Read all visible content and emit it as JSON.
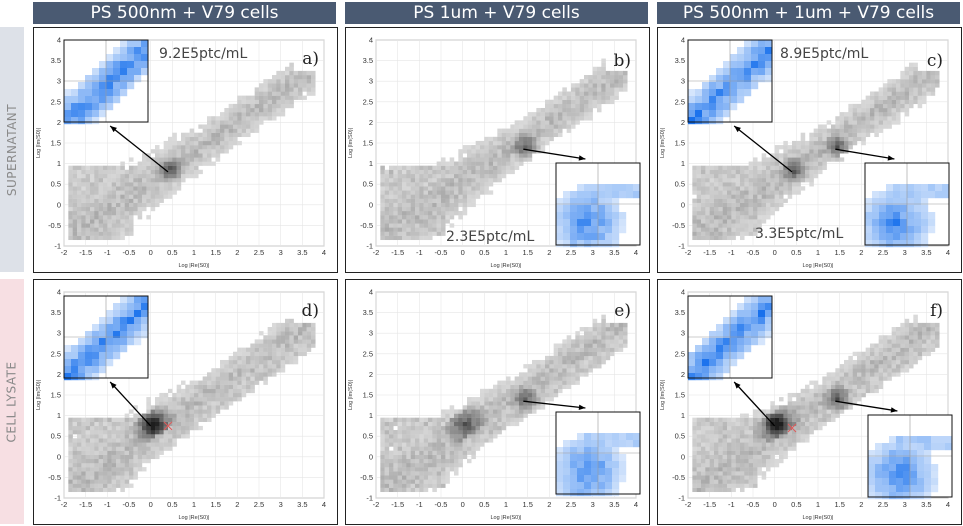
{
  "column_headers": [
    "PS 500nm + V79 cells",
    "PS 1um + V79 cells",
    "PS 500nm + 1um + V79 cells"
  ],
  "row_labels": [
    "SUPERNATANT",
    "CELL LYSATE"
  ],
  "colors": {
    "header_bg": "#4a5a72",
    "supernatant_band": "#dde1e8",
    "lysate_band": "#f7dfe3",
    "inset_blue": "#1f6fe0",
    "marker_red": "#e05a5a"
  },
  "chart_data": [
    {
      "panel": "a)",
      "type": "heatmap",
      "xlabel": "Log |Re(S0)|",
      "ylabel": "Log |Im(S0)|",
      "xlim": [
        -2,
        4
      ],
      "ylim": [
        -1,
        4
      ],
      "x_ticks": [
        "-2",
        "-1.5",
        "-1",
        "-0.5",
        "0",
        "0.5",
        "1",
        "1.5",
        "2",
        "2.5",
        "3",
        "3.5",
        "4"
      ],
      "y_ticks": [
        "-1",
        "-0.5",
        "0",
        "0.5",
        "1",
        "1.5",
        "2",
        "2.5",
        "3",
        "3.5",
        "4"
      ],
      "annotations": [
        "9.2E5ptc/mL"
      ],
      "hotspots": [
        {
          "x": 0.4,
          "y": 0.8
        }
      ],
      "marker": null
    },
    {
      "panel": "b)",
      "type": "heatmap",
      "xlabel": "Log |Re(S0)|",
      "ylabel": "Log |Im(S0)|",
      "xlim": [
        -2,
        4
      ],
      "ylim": [
        -1,
        4
      ],
      "x_ticks": [
        "-2",
        "-1.5",
        "-1",
        "-0.5",
        "0",
        "0.5",
        "1",
        "1.5",
        "2",
        "2.5",
        "3",
        "3.5",
        "4"
      ],
      "y_ticks": [
        "-1",
        "-0.5",
        "0",
        "0.5",
        "1",
        "1.5",
        "2",
        "2.5",
        "3",
        "3.5",
        "4"
      ],
      "annotations": [
        "2.3E5ptc/mL"
      ],
      "hotspots": [
        {
          "x": 1.4,
          "y": 1.35
        }
      ],
      "marker": null
    },
    {
      "panel": "c)",
      "type": "heatmap",
      "xlabel": "Log |Re(S0)|",
      "ylabel": "Log |Im(S0)|",
      "xlim": [
        -2,
        4
      ],
      "ylim": [
        -1,
        4
      ],
      "x_ticks": [
        "-2",
        "-1.5",
        "-1",
        "-0.5",
        "0",
        "0.5",
        "1",
        "1.5",
        "2",
        "2.5",
        "3",
        "3.5",
        "4"
      ],
      "y_ticks": [
        "-1",
        "-0.5",
        "0",
        "0.5",
        "1",
        "1.5",
        "2",
        "2.5",
        "3",
        "3.5",
        "4"
      ],
      "annotations": [
        "8.9E5ptc/mL",
        "3.3E5ptc/mL"
      ],
      "hotspots": [
        {
          "x": 0.4,
          "y": 0.8
        },
        {
          "x": 1.4,
          "y": 1.35
        }
      ],
      "marker": null
    },
    {
      "panel": "d)",
      "type": "heatmap",
      "xlabel": "Log |Re(S0)|",
      "ylabel": "Log |Im(S0)|",
      "xlim": [
        -2,
        4
      ],
      "ylim": [
        -1,
        4
      ],
      "x_ticks": [
        "-2",
        "-1.5",
        "-1",
        "-0.5",
        "0",
        "0.5",
        "1",
        "1.5",
        "2",
        "2.5",
        "3",
        "3.5",
        "4"
      ],
      "y_ticks": [
        "-1",
        "-0.5",
        "0",
        "0.5",
        "1",
        "1.5",
        "2",
        "2.5",
        "3",
        "3.5",
        "4"
      ],
      "annotations": [],
      "hotspots": [
        {
          "x": 0.0,
          "y": 0.75
        }
      ],
      "marker": {
        "x": 0.4,
        "y": 0.75
      }
    },
    {
      "panel": "e)",
      "type": "heatmap",
      "xlabel": "Log |Re(S0)|",
      "ylabel": "Log |Im(S0)|",
      "xlim": [
        -2,
        4
      ],
      "ylim": [
        -1,
        4
      ],
      "x_ticks": [
        "-2",
        "-1.5",
        "-1",
        "-0.5",
        "0",
        "0.5",
        "1",
        "1.5",
        "2",
        "2.5",
        "3",
        "3.5",
        "4"
      ],
      "y_ticks": [
        "-1",
        "-0.5",
        "0",
        "0.5",
        "1",
        "1.5",
        "2",
        "2.5",
        "3",
        "3.5",
        "4"
      ],
      "annotations": [],
      "hotspots": [
        {
          "x": 1.4,
          "y": 1.35
        }
      ],
      "marker": null
    },
    {
      "panel": "f)",
      "type": "heatmap",
      "xlabel": "Log |Re(S0)|",
      "ylabel": "Log |Im(S0)|",
      "xlim": [
        -2,
        4
      ],
      "ylim": [
        -1,
        4
      ],
      "x_ticks": [
        "-2",
        "-1.5",
        "-1",
        "-0.5",
        "0",
        "0.5",
        "1",
        "1.5",
        "2",
        "2.5",
        "3",
        "3.5",
        "4"
      ],
      "y_ticks": [
        "-1",
        "-0.5",
        "0",
        "0.5",
        "1",
        "1.5",
        "2",
        "2.5",
        "3",
        "3.5",
        "4"
      ],
      "annotations": [],
      "hotspots": [
        {
          "x": 0.0,
          "y": 0.75
        },
        {
          "x": 1.4,
          "y": 1.35
        }
      ],
      "marker": {
        "x": 0.4,
        "y": 0.7
      }
    }
  ]
}
